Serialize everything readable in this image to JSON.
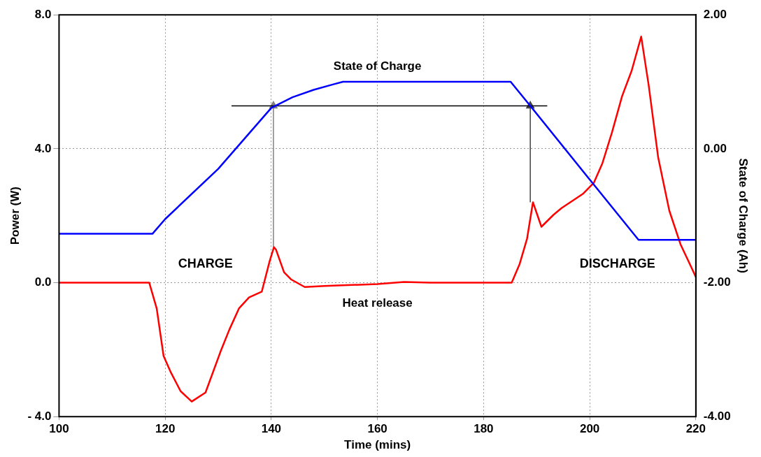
{
  "chart_data": {
    "type": "line",
    "xlabel": "Time (mins)",
    "ylabel": "Power (W)",
    "y2label": "State of Charge (Ah)",
    "xlim": [
      100,
      220
    ],
    "xticks": [
      100,
      120,
      140,
      160,
      180,
      200,
      220
    ],
    "ylim": [
      -4,
      8
    ],
    "yticks": [
      {
        "value": 8,
        "label": "8.0"
      },
      {
        "value": 4,
        "label": "4.0"
      },
      {
        "value": 0,
        "label": "0.0"
      },
      {
        "value": -4,
        "label": "- 4.0"
      }
    ],
    "y2lim": [
      -4,
      2
    ],
    "y2ticks": [
      {
        "value": 2,
        "label": "2.00"
      },
      {
        "value": 0,
        "label": "0.00"
      },
      {
        "value": -2,
        "label": "-2.00"
      },
      {
        "value": -4,
        "label": "-4.00"
      }
    ],
    "grid": true,
    "legend": false,
    "marker": "none",
    "annotations": [
      "CHARGE",
      "DISCHARGE"
    ],
    "series": [
      {
        "name": "State of Charge",
        "color": "#0000ff",
        "axis": "y2",
        "x": [
          100,
          117.6,
          120,
          130,
          140,
          144,
          148,
          151.6,
          153.5,
          185.1,
          188.8,
          200.3,
          209.2,
          220
        ],
        "values": [
          -1.27,
          -1.27,
          -1.05,
          -0.3,
          0.61,
          0.77,
          0.88,
          0.96,
          1.0,
          1.0,
          0.64,
          -0.49,
          -1.36,
          -1.36
        ]
      },
      {
        "name": "Heat release",
        "color": "#ff0000",
        "x": [
          100,
          117,
          118.4,
          119.7,
          121.1,
          122.9,
          125,
          127.6,
          130.5,
          132.1,
          133.9,
          135.8,
          138.2,
          139.7,
          140.5,
          140.9,
          142.4,
          143.7,
          146.3,
          150,
          160,
          165,
          170,
          185.3,
          186.8,
          188.2,
          189.3,
          190.9,
          193.2,
          194.7,
          198.7,
          200.8,
          202.4,
          204.2,
          206.1,
          207.9,
          209.7,
          211.1,
          212.9,
          215,
          217.1,
          218.7,
          220
        ],
        "values": [
          0,
          0,
          -0.77,
          -2.19,
          -2.69,
          -3.24,
          -3.55,
          -3.28,
          -2.03,
          -1.4,
          -0.77,
          -0.44,
          -0.27,
          0.65,
          1.06,
          0.98,
          0.31,
          0.1,
          -0.13,
          -0.1,
          -0.04,
          0.02,
          0,
          0,
          0.56,
          1.32,
          2.4,
          1.67,
          2.03,
          2.23,
          2.65,
          2.99,
          3.57,
          4.49,
          5.57,
          6.33,
          7.35,
          5.91,
          3.74,
          2.15,
          1.15,
          0.61,
          0.17
        ]
      },
      {
        "color": "#000000",
        "axis": "y2",
        "x": [
          132.5,
          192
        ],
        "values": [
          0.64,
          0.64
        ]
      },
      {
        "color": "#808080",
        "marker": "triangle",
        "x": [
          140.4,
          140.4
        ],
        "values": [
          1.06,
          5.28
        ]
      },
      {
        "color": "#404040",
        "marker": "triangle",
        "x": [
          188.8,
          188.8
        ],
        "values": [
          2.4,
          5.28
        ]
      }
    ]
  }
}
